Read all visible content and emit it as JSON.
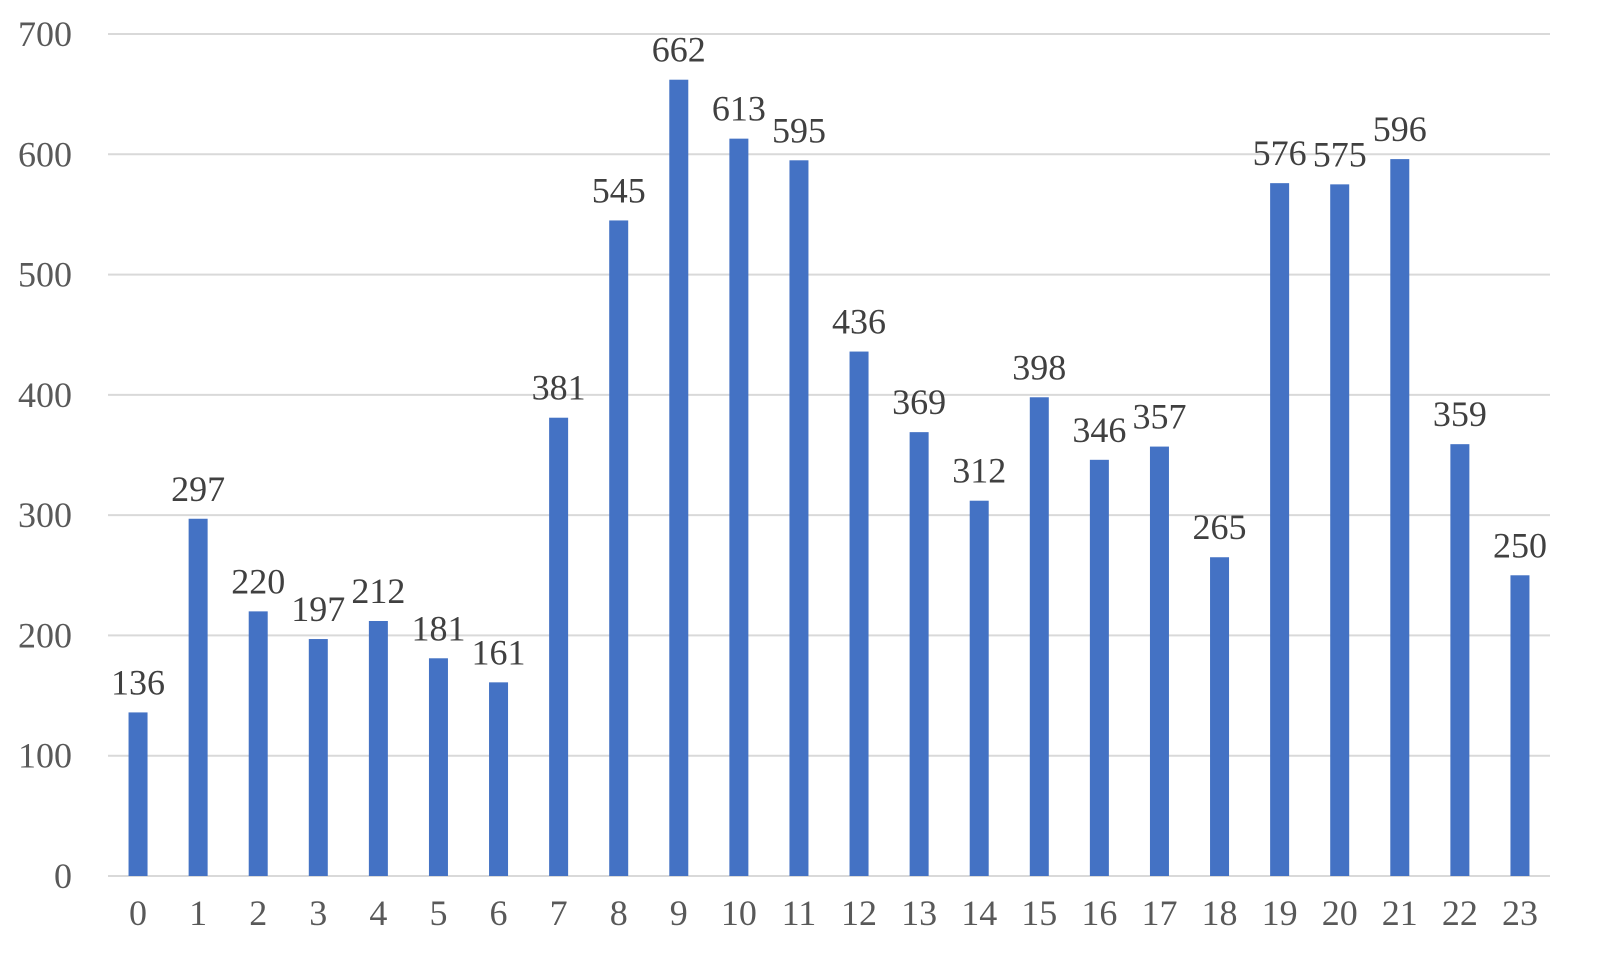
{
  "chart_data": {
    "type": "bar",
    "title": "",
    "xlabel": "",
    "ylabel": "",
    "categories": [
      "0",
      "1",
      "2",
      "3",
      "4",
      "5",
      "6",
      "7",
      "8",
      "9",
      "10",
      "11",
      "12",
      "13",
      "14",
      "15",
      "16",
      "17",
      "18",
      "19",
      "20",
      "21",
      "22",
      "23"
    ],
    "values": [
      136,
      297,
      220,
      197,
      212,
      181,
      161,
      381,
      545,
      662,
      613,
      595,
      436,
      369,
      312,
      398,
      346,
      357,
      265,
      576,
      575,
      596,
      359,
      250
    ],
    "ylim": [
      0,
      700
    ],
    "yticks": [
      0,
      100,
      200,
      300,
      400,
      500,
      600,
      700
    ],
    "grid": true,
    "legend": "none",
    "data_labels": true,
    "bar_color": "#4472c4",
    "grid_color": "#d9d9d9"
  }
}
